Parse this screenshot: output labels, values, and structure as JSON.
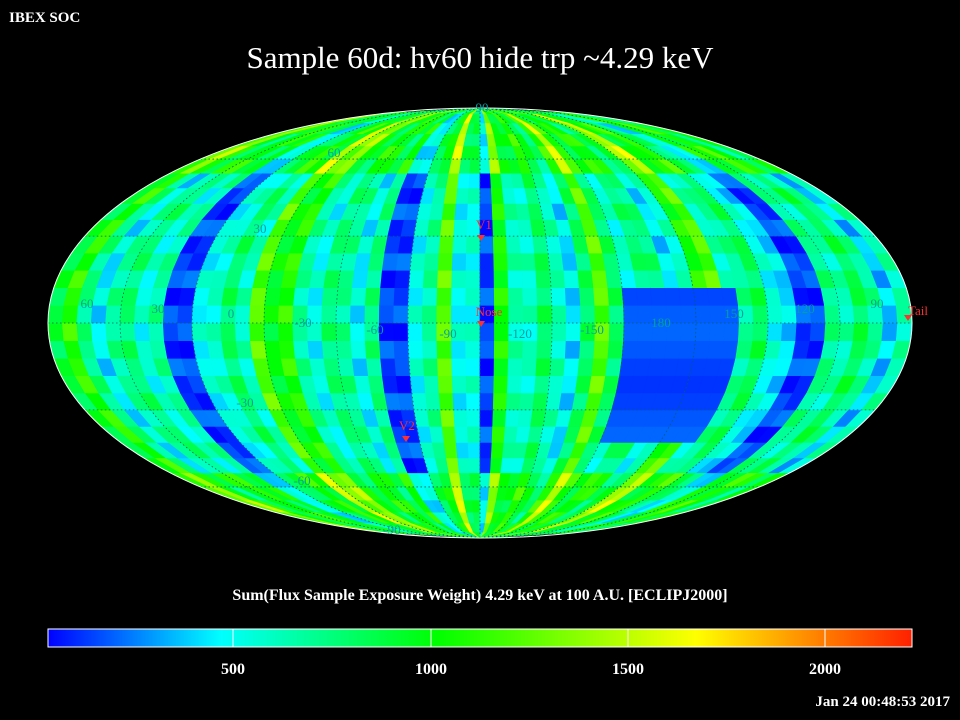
{
  "header": {
    "org": "IBEX SOC",
    "title": "Sample 60d: hv60 hide trp ~4.29 keV"
  },
  "map": {
    "projection": "mollweide",
    "lat_labels_north": [
      "90",
      "60",
      "30"
    ],
    "lat_labels_south": [
      "-30",
      "-60",
      "-90"
    ],
    "lon_labels": [
      "60",
      "30",
      "0",
      "-30",
      "-60",
      "-90",
      "-120",
      "-150",
      "180",
      "150",
      "120",
      "90"
    ],
    "markers": [
      {
        "name": "V1",
        "color": "#ff3030"
      },
      {
        "name": "Nose",
        "color": "#ff3030"
      },
      {
        "name": "Tail",
        "color": "#ff3030"
      },
      {
        "name": "V2",
        "color": "#ff3030"
      }
    ]
  },
  "colorbar": {
    "title": "Sum(Flux Sample Exposure Weight)  4.29 keV at 100 A.U. [ECLIPJ2000]",
    "ticks": [
      "500",
      "1000",
      "1500",
      "2000"
    ],
    "colors": [
      "#0000ff",
      "#00ffff",
      "#00ff00",
      "#ffff00",
      "#ff0000"
    ]
  },
  "footer": {
    "timestamp": "Jan 24 00:48:53 2017"
  }
}
